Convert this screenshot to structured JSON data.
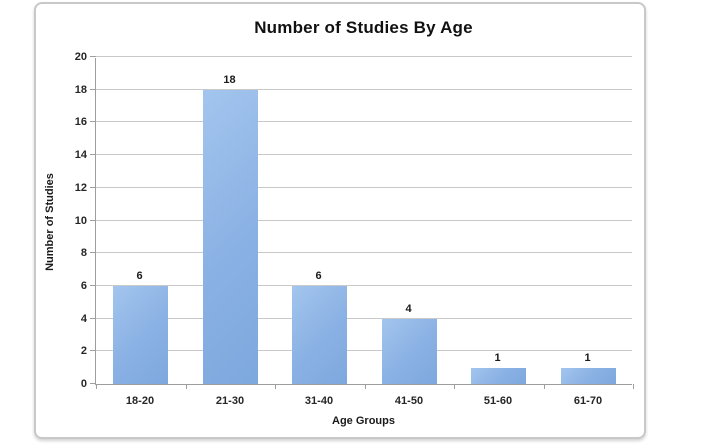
{
  "chart_data": {
    "type": "bar",
    "title": "Number of Studies By Age",
    "xlabel": "Age Groups",
    "ylabel": "Number of Studies",
    "categories": [
      "18-20",
      "21-30",
      "31-40",
      "41-50",
      "51-60",
      "61-70"
    ],
    "values": [
      6,
      18,
      6,
      4,
      1,
      1
    ],
    "data_labels": [
      "6",
      "18",
      "6",
      "4",
      "1",
      "1"
    ],
    "ylim": [
      0,
      20
    ],
    "yticks": [
      0,
      2,
      4,
      6,
      8,
      10,
      12,
      14,
      16,
      18,
      20
    ],
    "grid": true,
    "legend": "none",
    "colors": {
      "bar_gradient_light": "#a3c5ee",
      "bar_mid": "#8ab1e4",
      "bar_gradient_dark": "#7da8de",
      "gridline": "#c9c9c9",
      "axis_line": "#9e9e9e",
      "frame_border": "#c8c8c8",
      "text": "#1a1a1a"
    }
  }
}
